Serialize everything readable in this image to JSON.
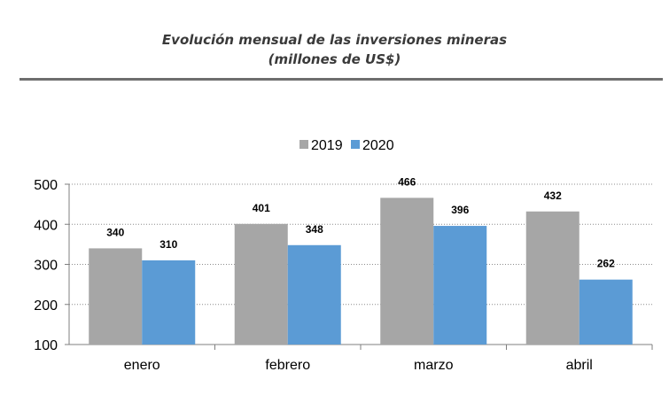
{
  "header": {
    "title_line1": "Evolución mensual de las inversiones mineras",
    "title_line2": "(millones de US$)"
  },
  "chart_data": {
    "type": "bar",
    "categories": [
      "enero",
      "febrero",
      "marzo",
      "abril"
    ],
    "series": [
      {
        "name": "2019",
        "values": [
          340,
          401,
          466,
          432
        ],
        "color": "#a6a6a6"
      },
      {
        "name": "2020",
        "values": [
          310,
          348,
          396,
          262
        ],
        "color": "#5b9bd5"
      }
    ],
    "ylim": [
      100,
      500
    ],
    "yticks": [
      100,
      200,
      300,
      400,
      500
    ],
    "grid": true,
    "legend": "top-center",
    "data_labels": true
  }
}
